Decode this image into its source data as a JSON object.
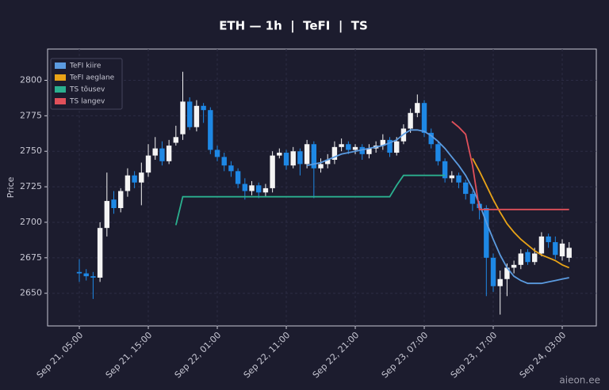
{
  "chart_data": {
    "type": "candlestick",
    "title": "ETH — 1h  |  TeFI  |  TS",
    "y_label": "Price",
    "watermark": "aieon.ee",
    "up_color": "#f4f4f4",
    "down_color": "#1e88e5",
    "grid": true,
    "legend_position": "upper left",
    "ylim": [
      2627,
      2822
    ],
    "yticks": [
      2650,
      2675,
      2700,
      2725,
      2750,
      2775,
      2800
    ],
    "x": [
      "Sep 21, 05:00",
      null,
      null,
      null,
      null,
      null,
      null,
      null,
      null,
      null,
      "Sep 21, 15:00",
      null,
      null,
      null,
      null,
      null,
      null,
      null,
      null,
      null,
      "Sep 22, 01:00",
      null,
      null,
      null,
      null,
      null,
      null,
      null,
      null,
      null,
      "Sep 22, 11:00",
      null,
      null,
      null,
      null,
      null,
      null,
      null,
      null,
      null,
      "Sep 22, 21:00",
      null,
      null,
      null,
      null,
      null,
      null,
      null,
      null,
      null,
      "Sep 23, 07:00",
      null,
      null,
      null,
      null,
      null,
      null,
      null,
      null,
      null,
      "Sep 23, 17:00",
      null,
      null,
      null,
      null,
      null,
      null,
      null,
      null,
      null,
      "Sep 24, 03:00",
      null
    ],
    "open": [
      2665,
      2664,
      2662,
      2661,
      2696,
      2716,
      2710,
      2722,
      2733,
      2728,
      2735,
      2747,
      2752,
      2743,
      2756,
      2762,
      2785,
      2767,
      2782,
      2779,
      2751,
      2746,
      2740,
      2736,
      2727,
      2722,
      2726,
      2721,
      2724,
      2747,
      2749,
      2740,
      2750,
      2741,
      2755,
      2738,
      2741,
      2744,
      2753,
      2755,
      2751,
      2753,
      2748,
      2752,
      2754,
      2758,
      2749,
      2757,
      2766,
      2777,
      2784,
      2763,
      2755,
      2743,
      2731,
      2733,
      2728,
      2720,
      2713,
      2710,
      2675,
      2655,
      2660,
      2668,
      2670,
      2679,
      2672,
      2678,
      2690,
      2686,
      2676,
      2675
    ],
    "high": [
      2674,
      2667,
      2665,
      2700,
      2735,
      2722,
      2724,
      2738,
      2736,
      2742,
      2755,
      2760,
      2757,
      2758,
      2768,
      2806,
      2788,
      2786,
      2784,
      2781,
      2754,
      2749,
      2743,
      2738,
      2731,
      2729,
      2728,
      2727,
      2750,
      2752,
      2751,
      2753,
      2752,
      2758,
      2757,
      2745,
      2748,
      2757,
      2759,
      2757,
      2755,
      2755,
      2755,
      2757,
      2762,
      2760,
      2760,
      2769,
      2780,
      2790,
      2786,
      2766,
      2757,
      2745,
      2736,
      2735,
      2730,
      2722,
      2715,
      2712,
      2678,
      2666,
      2671,
      2673,
      2681,
      2681,
      2682,
      2693,
      2692,
      2690,
      2688,
      2686
    ],
    "low": [
      2658,
      2659,
      2646,
      2658,
      2690,
      2706,
      2707,
      2718,
      2724,
      2712,
      2732,
      2744,
      2740,
      2741,
      2754,
      2758,
      2765,
      2764,
      2770,
      2748,
      2743,
      2736,
      2732,
      2724,
      2716,
      2719,
      2717,
      2718,
      2721,
      2745,
      2737,
      2738,
      2733,
      2738,
      2717,
      2735,
      2738,
      2741,
      2750,
      2748,
      2748,
      2744,
      2745,
      2749,
      2751,
      2746,
      2747,
      2755,
      2763,
      2774,
      2760,
      2752,
      2740,
      2728,
      2728,
      2724,
      2716,
      2708,
      2702,
      2648,
      2651,
      2635,
      2648,
      2664,
      2667,
      2670,
      2670,
      2676,
      2682,
      2674,
      2673,
      2672
    ],
    "close": [
      2664,
      2662,
      2661,
      2696,
      2715,
      2710,
      2722,
      2733,
      2728,
      2735,
      2747,
      2752,
      2743,
      2754,
      2760,
      2785,
      2767,
      2782,
      2779,
      2751,
      2746,
      2740,
      2736,
      2727,
      2722,
      2726,
      2721,
      2724,
      2747,
      2749,
      2740,
      2750,
      2741,
      2755,
      2738,
      2741,
      2744,
      2753,
      2755,
      2751,
      2753,
      2748,
      2752,
      2754,
      2758,
      2749,
      2757,
      2766,
      2777,
      2784,
      2763,
      2755,
      2743,
      2731,
      2733,
      2728,
      2720,
      2713,
      2710,
      2675,
      2655,
      2660,
      2668,
      2670,
      2678,
      2672,
      2678,
      2690,
      2686,
      2677,
      2685,
      2682
    ],
    "series": [
      {
        "name": "TeFI kiire",
        "color": "#5b9be0",
        "values": [
          null,
          null,
          null,
          null,
          null,
          null,
          null,
          null,
          null,
          null,
          null,
          null,
          null,
          null,
          null,
          null,
          null,
          null,
          null,
          null,
          null,
          null,
          null,
          null,
          null,
          null,
          null,
          null,
          null,
          null,
          null,
          null,
          null,
          2740,
          2741,
          2742,
          2744,
          2746,
          2748,
          2749,
          2750,
          2751,
          2752,
          2753,
          2754,
          2756,
          2758,
          2762,
          2765,
          2765,
          2764,
          2761,
          2757,
          2752,
          2746,
          2740,
          2733,
          2724,
          2713,
          2700,
          2688,
          2677,
          2668,
          2662,
          2659,
          2657,
          2657,
          2657,
          2658,
          2659,
          2660,
          2661
        ]
      },
      {
        "name": "TeFI aeglane",
        "color": "#e8a317",
        "values": [
          null,
          null,
          null,
          null,
          null,
          null,
          null,
          null,
          null,
          null,
          null,
          null,
          null,
          null,
          null,
          null,
          null,
          null,
          null,
          null,
          null,
          null,
          null,
          null,
          null,
          null,
          null,
          null,
          null,
          null,
          null,
          null,
          null,
          null,
          null,
          null,
          null,
          null,
          null,
          null,
          null,
          null,
          null,
          null,
          null,
          null,
          null,
          null,
          null,
          null,
          null,
          null,
          null,
          null,
          null,
          null,
          null,
          2745,
          2736,
          2726,
          2716,
          2707,
          2699,
          2693,
          2688,
          2684,
          2680,
          2677,
          2675,
          2673,
          2670,
          2668
        ]
      },
      {
        "name": "TS tõusev",
        "color": "#2bb08f",
        "values": [
          null,
          null,
          null,
          null,
          null,
          null,
          null,
          null,
          null,
          null,
          null,
          null,
          null,
          null,
          2698,
          2718,
          2718,
          2718,
          2718,
          2718,
          2718,
          2718,
          2718,
          2718,
          2718,
          2718,
          2718,
          2718,
          2718,
          2718,
          2718,
          2718,
          2718,
          2718,
          2718,
          2718,
          2718,
          2718,
          2718,
          2718,
          2718,
          2718,
          2718,
          2718,
          2718,
          2718,
          2726,
          2733,
          2733,
          2733,
          2733,
          2733,
          2733,
          2733,
          null,
          null,
          null,
          null,
          null,
          null,
          null,
          null,
          null,
          null,
          null,
          null,
          null,
          null,
          null,
          null,
          null,
          null
        ]
      },
      {
        "name": "TS langev",
        "color": "#e0505a",
        "values": [
          null,
          null,
          null,
          null,
          null,
          null,
          null,
          null,
          null,
          null,
          null,
          null,
          null,
          null,
          null,
          null,
          null,
          null,
          null,
          null,
          null,
          null,
          null,
          null,
          null,
          null,
          null,
          null,
          null,
          null,
          null,
          null,
          null,
          null,
          null,
          null,
          null,
          null,
          null,
          null,
          null,
          null,
          null,
          null,
          null,
          null,
          null,
          null,
          null,
          null,
          null,
          null,
          null,
          null,
          2771,
          2767,
          2762,
          2740,
          2709,
          2709,
          2709,
          2709,
          2709,
          2709,
          2709,
          2709,
          2709,
          2709,
          2709,
          2709,
          2709,
          2709
        ]
      }
    ]
  }
}
